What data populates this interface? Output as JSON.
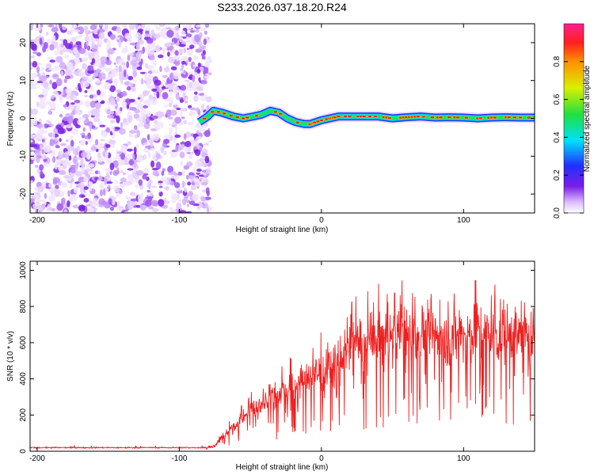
{
  "title": "S233.2026.037.18.20.R24",
  "colors": {
    "snr_line": "#ee2020",
    "scatter_purple": "#7a1ee6",
    "ridge_blue": "#2030ff",
    "ridge_green": "#20e060",
    "ridge_red": "#ff2020"
  },
  "chart_data": [
    {
      "type": "heatmap",
      "xlabel": "Height of straight line (km)",
      "ylabel": "Frequency (Hz)",
      "xlim": [
        -205,
        150
      ],
      "ylim": [
        -25,
        25
      ],
      "xticks": [
        -200,
        -100,
        0,
        100
      ],
      "yticks": [
        -20,
        -10,
        0,
        10,
        20
      ],
      "ridge": {
        "x": [
          -86,
          -80,
          -76,
          -70,
          -62,
          -55,
          -48,
          -42,
          -36,
          -30,
          -24,
          -18,
          -12,
          -8,
          -4,
          0,
          6,
          12,
          20,
          30,
          40,
          50,
          60,
          70,
          80,
          90,
          100,
          110,
          120,
          130,
          140,
          150
        ],
        "y": [
          -1,
          0.5,
          2,
          1.5,
          0.5,
          0,
          0.5,
          1,
          2,
          1.5,
          0,
          -1,
          -1.5,
          -1.5,
          -1,
          -0.5,
          0,
          0.5,
          0.5,
          0.5,
          0.5,
          0,
          0.3,
          0.5,
          0.2,
          0.3,
          0.2,
          0,
          0.2,
          0.3,
          0.2,
          0.2
        ]
      },
      "colorbar": {
        "label": "Normalized spectral amplitude",
        "range": [
          0,
          1
        ],
        "ticks": [
          "0.0",
          "0.2",
          "0.4",
          "0.6",
          "0.8"
        ]
      }
    },
    {
      "type": "line",
      "xlabel": "Height of straight line (km)",
      "ylabel": "SNR (10 * v/v)",
      "xlim": [
        -205,
        150
      ],
      "ylim": [
        0,
        1050
      ],
      "xticks": [
        -200,
        -100,
        0,
        100
      ],
      "yticks": [
        0,
        200,
        400,
        600,
        800,
        1000
      ],
      "series": [
        {
          "x": [
            -205,
            -180,
            -150,
            -120,
            -100,
            -90,
            -80,
            -75,
            -70,
            -65,
            -60,
            -55,
            -50,
            -40,
            -30,
            -20,
            -10,
            0,
            10,
            20,
            30,
            40,
            50,
            60,
            70,
            80,
            90,
            100,
            110,
            120,
            130,
            140,
            150
          ],
          "values": [
            20,
            20,
            20,
            20,
            20,
            20,
            20,
            30,
            70,
            110,
            150,
            190,
            230,
            280,
            320,
            360,
            400,
            440,
            500,
            560,
            600,
            620,
            640,
            650,
            650,
            650,
            650,
            650,
            650,
            650,
            640,
            650,
            650
          ]
        }
      ]
    }
  ]
}
